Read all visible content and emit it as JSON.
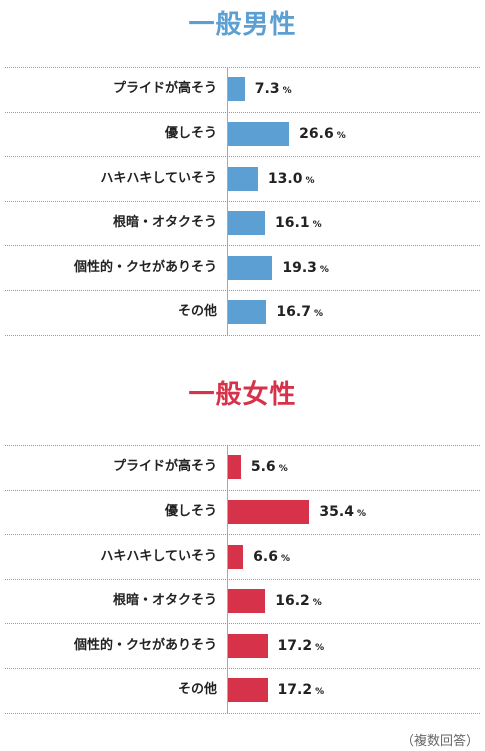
{
  "colors": {
    "male": "#5b9fd3",
    "female": "#d6334a"
  },
  "footnote": "（複数回答）",
  "chart_data": [
    {
      "type": "bar",
      "title": "一般男性",
      "categories": [
        "プライドが高そう",
        "優しそう",
        "ハキハキしていそう",
        "根暗・オタクそう",
        "個性的・クセがありそう",
        "その他"
      ],
      "values": [
        7.3,
        26.6,
        13.0,
        16.1,
        19.3,
        16.7
      ],
      "value_labels": [
        "7.3",
        "26.6",
        "13.0",
        "16.1",
        "19.3",
        "16.7"
      ],
      "unit": "%",
      "orientation": "horizontal",
      "color": "#5b9fd3"
    },
    {
      "type": "bar",
      "title": "一般女性",
      "categories": [
        "プライドが高そう",
        "優しそう",
        "ハキハキしていそう",
        "根暗・オタクそう",
        "個性的・クセがありそう",
        "その他"
      ],
      "values": [
        5.6,
        35.4,
        6.6,
        16.2,
        17.2,
        17.2
      ],
      "value_labels": [
        "5.6",
        "35.4",
        "6.6",
        "16.2",
        "17.2",
        "17.2"
      ],
      "unit": "%",
      "orientation": "horizontal",
      "color": "#d6334a"
    }
  ]
}
